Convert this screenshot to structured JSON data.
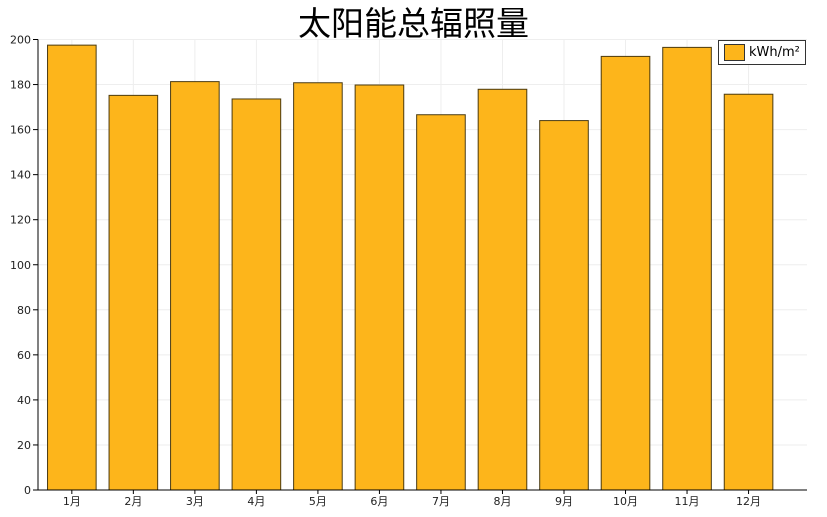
{
  "chart_data": {
    "type": "bar",
    "title": "太阳能总辐照量",
    "categories": [
      "1月",
      "2月",
      "3月",
      "4月",
      "5月",
      "6月",
      "7月",
      "8月",
      "9月",
      "10月",
      "11月",
      "12月"
    ],
    "series": [
      {
        "name": "kWh/m²",
        "values": [
          197.5,
          175.2,
          181.3,
          173.6,
          180.8,
          179.8,
          166.6,
          177.9,
          164.0,
          192.5,
          196.5,
          175.7
        ]
      }
    ],
    "ylim": [
      0,
      200
    ],
    "yticks": [
      0,
      20,
      40,
      60,
      80,
      100,
      120,
      140,
      160,
      180,
      200
    ],
    "grid": true,
    "legend_position": "top-right",
    "colors": {
      "bar_fill": "#FDB51B",
      "bar_stroke": "#4a3a10",
      "grid": "#eeeeee",
      "axis": "#000000"
    }
  }
}
